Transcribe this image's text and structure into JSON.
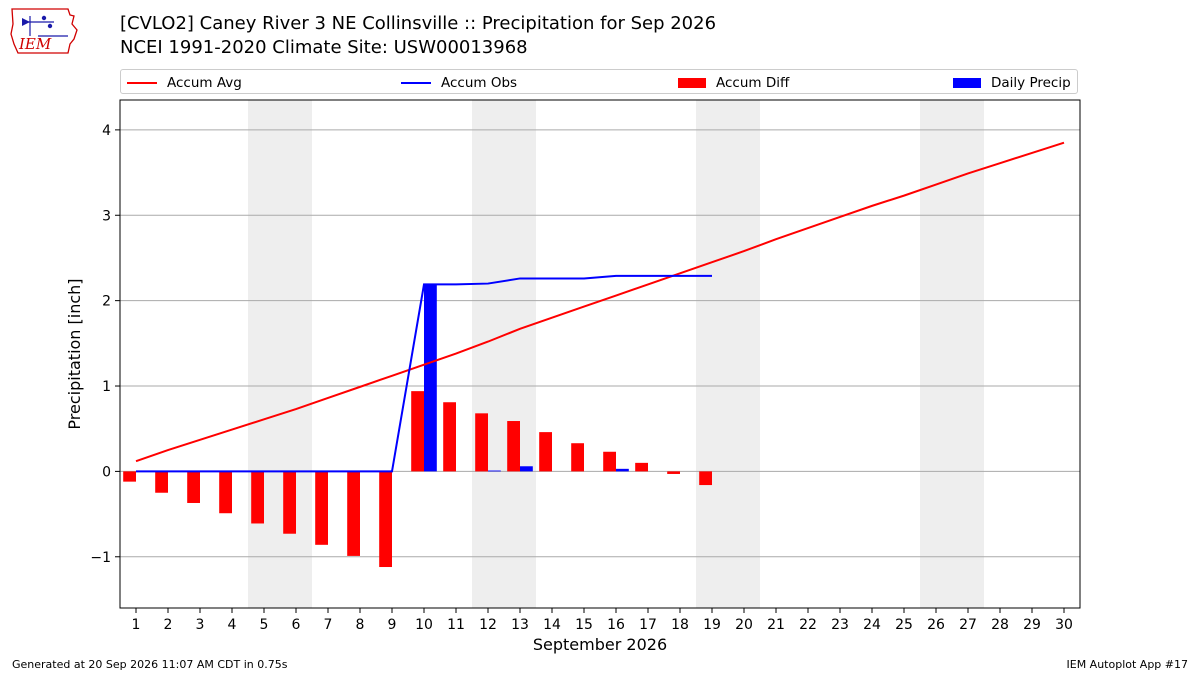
{
  "header": {
    "logo_text": "IEM",
    "title_line1": "[CVLO2] Caney River 3 NE Collinsville :: Precipitation for Sep 2026",
    "title_line2": "NCEI 1991-2020 Climate Site: USW00013968"
  },
  "legend": {
    "accum_avg": "Accum Avg",
    "accum_obs": "Accum Obs",
    "accum_diff": "Accum Diff",
    "daily_precip": "Daily Precip",
    "placement": "top, outside plot"
  },
  "colors": {
    "accum_avg": "#ff0000",
    "accum_obs": "#0000ff",
    "accum_diff": "#ff0000",
    "daily_precip": "#0000ff",
    "weekend_shade": "#eeeeee",
    "grid": "#aaaaaa"
  },
  "chart_data": {
    "type": "bar",
    "xlabel": "September 2026",
    "ylabel": "Precipitation [inch]",
    "x": [
      1,
      2,
      3,
      4,
      5,
      6,
      7,
      8,
      9,
      10,
      11,
      12,
      13,
      14,
      15,
      16,
      17,
      18,
      19,
      20,
      21,
      22,
      23,
      24,
      25,
      26,
      27,
      28,
      29,
      30
    ],
    "xlim": [
      0.5,
      30.5
    ],
    "ylim": [
      -1.6,
      4.35
    ],
    "yticks": [
      -1,
      0,
      1,
      2,
      3,
      4
    ],
    "ytick_labels": [
      "−1",
      "0",
      "1",
      "2",
      "3",
      "4"
    ],
    "grid": true,
    "weekend_shading": [
      [
        4.5,
        6.5
      ],
      [
        11.5,
        13.5
      ],
      [
        18.5,
        20.5
      ],
      [
        25.5,
        27.5
      ]
    ],
    "series": [
      {
        "name": "Accum Avg",
        "kind": "line",
        "x": [
          1,
          2,
          3,
          4,
          5,
          6,
          7,
          8,
          9,
          10,
          11,
          12,
          13,
          14,
          15,
          16,
          17,
          18,
          19,
          20,
          21,
          22,
          23,
          24,
          25,
          26,
          27,
          28,
          29,
          30
        ],
        "values": [
          0.12,
          0.25,
          0.37,
          0.49,
          0.61,
          0.73,
          0.86,
          0.99,
          1.12,
          1.25,
          1.38,
          1.52,
          1.67,
          1.8,
          1.93,
          2.06,
          2.19,
          2.32,
          2.45,
          2.58,
          2.72,
          2.85,
          2.98,
          3.11,
          3.23,
          3.36,
          3.49,
          3.61,
          3.73,
          3.85
        ]
      },
      {
        "name": "Accum Obs",
        "kind": "line",
        "x": [
          1,
          2,
          3,
          4,
          5,
          6,
          7,
          8,
          9,
          10,
          11,
          12,
          13,
          14,
          15,
          16,
          17,
          18,
          19
        ],
        "values": [
          0,
          0,
          0,
          0,
          0,
          0,
          0,
          0,
          0,
          2.19,
          2.19,
          2.2,
          2.26,
          2.26,
          2.26,
          2.29,
          2.29,
          2.29,
          2.29
        ]
      },
      {
        "name": "Accum Diff",
        "kind": "bar",
        "x": [
          1,
          2,
          3,
          4,
          5,
          6,
          7,
          8,
          9,
          10,
          11,
          12,
          13,
          14,
          15,
          16,
          17,
          18,
          19
        ],
        "values": [
          -0.12,
          -0.25,
          -0.37,
          -0.49,
          -0.61,
          -0.73,
          -0.86,
          -0.99,
          -1.12,
          0.94,
          0.81,
          0.68,
          0.59,
          0.46,
          0.33,
          0.23,
          0.1,
          -0.03,
          -0.16
        ]
      },
      {
        "name": "Daily Precip",
        "kind": "bar",
        "x": [
          1,
          2,
          3,
          4,
          5,
          6,
          7,
          8,
          9,
          10,
          11,
          12,
          13,
          14,
          15,
          16,
          17,
          18,
          19
        ],
        "values": [
          0,
          0,
          0,
          0,
          0,
          0,
          0,
          0,
          0,
          2.19,
          0,
          0.01,
          0.06,
          0,
          0,
          0.03,
          0,
          0,
          0
        ]
      }
    ]
  },
  "footer": {
    "left": "Generated at 20 Sep 2026 11:07 AM CDT in 0.75s",
    "right": "IEM Autoplot App #17"
  }
}
